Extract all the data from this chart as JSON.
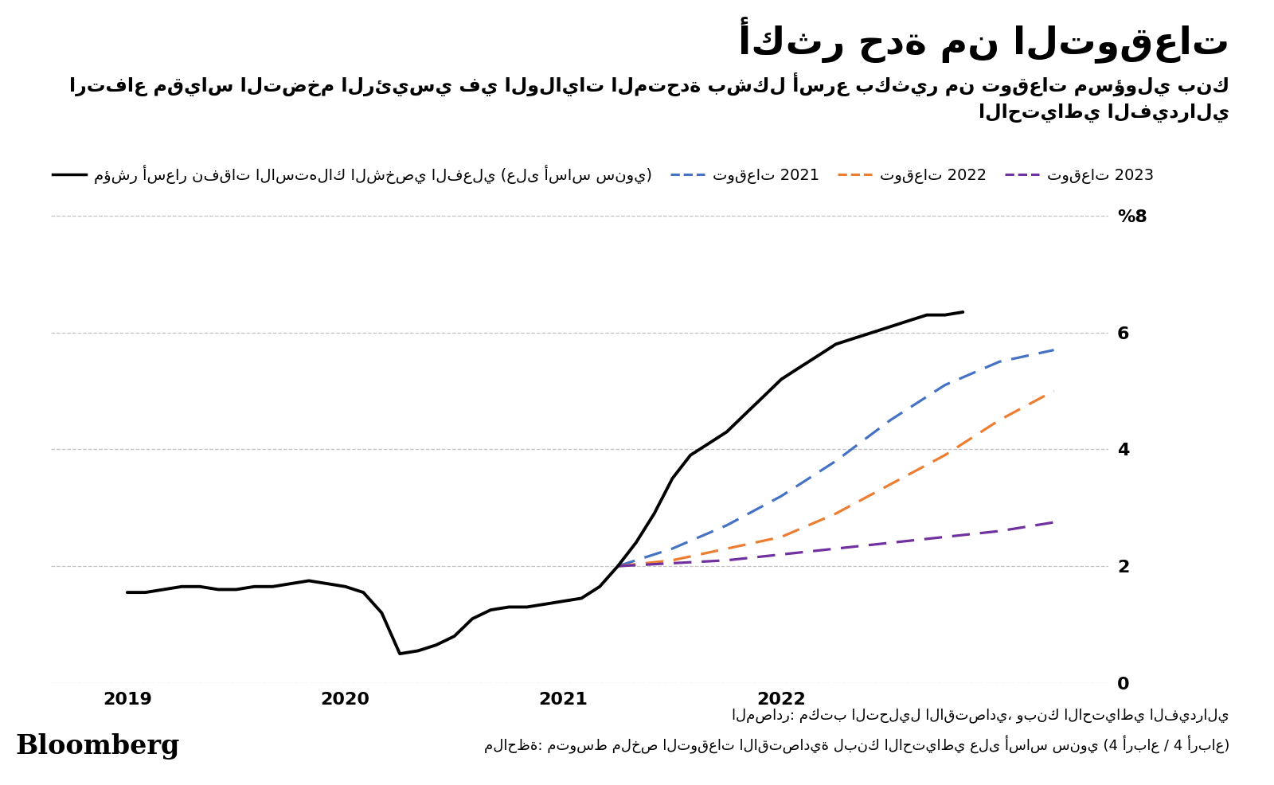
{
  "title": "أكثر حدة من التوقعات",
  "subtitle_line1": "ارتفاع مقياس التضخم الرئيسي في الولايات المتحدة بشكل أسرع بكثير من توقعات مسؤولي بنك",
  "subtitle_line2": "الاحتياطي الفيدرالي",
  "legend_actual": "مؤشر أسعار نفقات الاستهلاك الشخصي الفعلي (على أساس سنوي)",
  "legend_2021": "توقعات 2021",
  "legend_2022": "توقعات 2022",
  "legend_2023": "توقعات 2023",
  "source_line1": "المصادر: مكتب التحليل الاقتصادي، وبنك الاحتياطي الفيدرالي",
  "source_line2": "ملاحظة: متوسط ملخص التوقعات الاقتصادية لبنك الاحتياطي على أساس سنوي (4 أرباع / 4 أرباع)",
  "actual_x": [
    2019.0,
    2019.083,
    2019.167,
    2019.25,
    2019.333,
    2019.417,
    2019.5,
    2019.583,
    2019.667,
    2019.75,
    2019.833,
    2019.917,
    2020.0,
    2020.083,
    2020.167,
    2020.25,
    2020.333,
    2020.417,
    2020.5,
    2020.583,
    2020.667,
    2020.75,
    2020.833,
    2020.917,
    2021.0,
    2021.083,
    2021.167,
    2021.25,
    2021.333,
    2021.417,
    2021.5,
    2021.583,
    2021.667,
    2021.75,
    2021.833,
    2021.917,
    2022.0,
    2022.083,
    2022.167,
    2022.25,
    2022.333,
    2022.417,
    2022.5,
    2022.583,
    2022.667,
    2022.75,
    2022.833
  ],
  "actual_y": [
    1.55,
    1.55,
    1.6,
    1.65,
    1.65,
    1.6,
    1.6,
    1.65,
    1.65,
    1.7,
    1.75,
    1.7,
    1.65,
    1.55,
    1.2,
    0.5,
    0.55,
    0.65,
    0.8,
    1.1,
    1.25,
    1.3,
    1.3,
    1.35,
    1.4,
    1.45,
    1.65,
    2.0,
    2.4,
    2.9,
    3.5,
    3.9,
    4.1,
    4.3,
    4.6,
    4.9,
    5.2,
    5.4,
    5.6,
    5.8,
    5.9,
    6.0,
    6.1,
    6.2,
    6.3,
    6.3,
    6.35
  ],
  "forecast2021_x": [
    2021.25,
    2021.5,
    2021.75,
    2022.0,
    2022.25,
    2022.5,
    2022.75,
    2023.0,
    2023.25
  ],
  "forecast2021_y": [
    2.0,
    2.3,
    2.7,
    3.2,
    3.8,
    4.5,
    5.1,
    5.5,
    5.7
  ],
  "forecast2022_x": [
    2021.25,
    2021.5,
    2021.75,
    2022.0,
    2022.25,
    2022.5,
    2022.75,
    2023.0,
    2023.25
  ],
  "forecast2022_y": [
    2.0,
    2.1,
    2.3,
    2.5,
    2.9,
    3.4,
    3.9,
    4.5,
    5.0
  ],
  "forecast2023_x": [
    2021.25,
    2021.5,
    2021.75,
    2022.0,
    2022.25,
    2022.5,
    2022.75,
    2023.0,
    2023.25
  ],
  "forecast2023_y": [
    2.0,
    2.05,
    2.1,
    2.2,
    2.3,
    2.4,
    2.5,
    2.6,
    2.75
  ],
  "color_actual": "#000000",
  "color_2021": "#4472c4",
  "color_2022": "#ed7d31",
  "color_2023": "#7030a0",
  "ylim": [
    0,
    8.4
  ],
  "yticks": [
    0,
    2,
    4,
    6,
    8
  ],
  "ytick_labels": [
    "0",
    "2",
    "4",
    "6",
    "%8"
  ],
  "xticks": [
    2019,
    2020,
    2021,
    2022
  ],
  "bg_color": "#ffffff",
  "title_fontsize": 34,
  "subtitle_fontsize": 17,
  "legend_fontsize": 14,
  "tick_fontsize": 16,
  "source_fontsize": 13,
  "bloomberg_fontsize": 24
}
